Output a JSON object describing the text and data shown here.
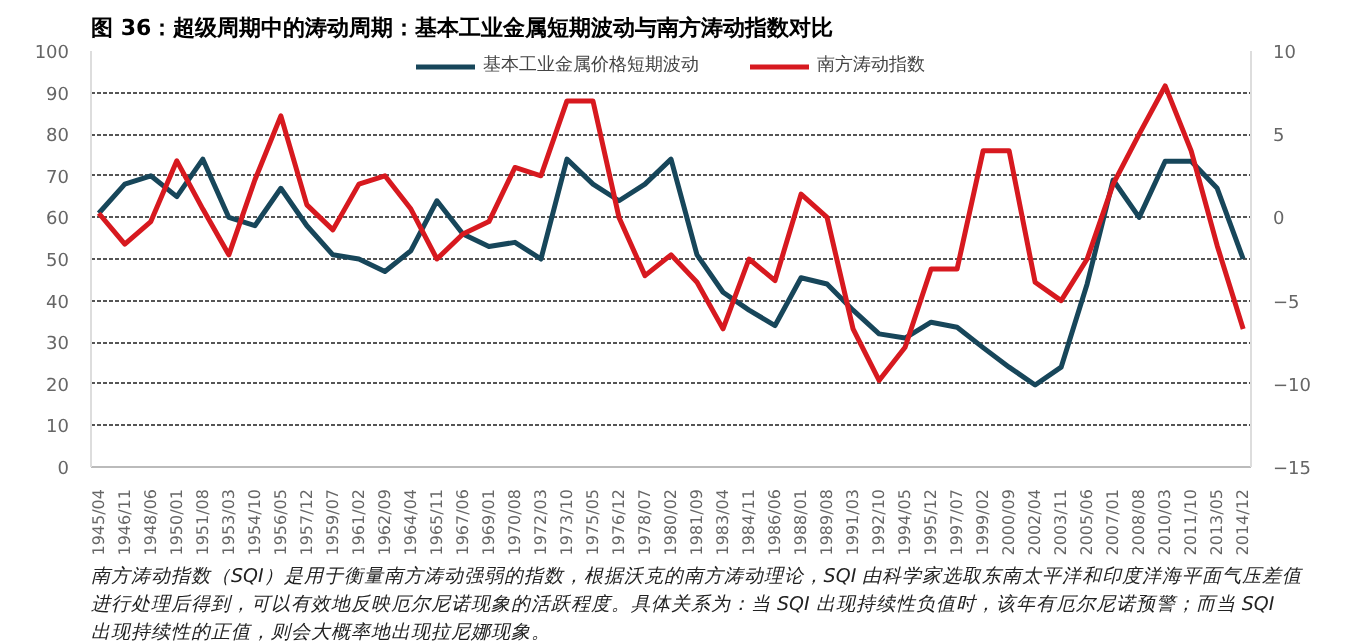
{
  "chart_data": {
    "type": "line",
    "title": "图 36：超级周期中的涛动周期：基本工业金属短期波动与南方涛动指数对比",
    "categories": [
      "1945/04",
      "1946/11",
      "1948/06",
      "1950/01",
      "1951/08",
      "1953/03",
      "1954/10",
      "1956/05",
      "1957/12",
      "1959/07",
      "1961/02",
      "1962/09",
      "1964/04",
      "1965/11",
      "1967/06",
      "1969/01",
      "1970/08",
      "1972/03",
      "1973/10",
      "1975/05",
      "1976/12",
      "1978/07",
      "1980/02",
      "1981/09",
      "1983/04",
      "1984/11",
      "1986/06",
      "1988/01",
      "1989/08",
      "1991/03",
      "1992/10",
      "1994/05",
      "1995/12",
      "1997/07",
      "1999/02",
      "2000/09",
      "2002/04",
      "2003/11",
      "2005/06",
      "2007/01",
      "2008/08",
      "2010/03",
      "2011/10",
      "2013/05",
      "2014/12"
    ],
    "series": [
      {
        "name": "基本工业金属价格短期波动",
        "color": "#17465a",
        "values": [
          61,
          68,
          70,
          65,
          74,
          60,
          58,
          67,
          58,
          51,
          50,
          47,
          52,
          64,
          56,
          53,
          54,
          50,
          74,
          68,
          64,
          68,
          74,
          51,
          42,
          37.7,
          34,
          45.5,
          44,
          37.7,
          32,
          31,
          34.8,
          33.6,
          28.7,
          24,
          19.7,
          24,
          44,
          69,
          60,
          73.5,
          73.5,
          67,
          50
        ]
      },
      {
        "name": "南方涛动指数",
        "color": "#d7191f",
        "axis": "y2",
        "values": [
          0.25,
          -1.6,
          -0.25,
          3.4,
          0.5,
          -2.25,
          2.25,
          6.1,
          0.75,
          -0.75,
          2,
          2.5,
          0.5,
          -2.5,
          -1,
          -0.25,
          3,
          2.5,
          7,
          7,
          0,
          -3.5,
          -2.25,
          -3.9,
          -6.7,
          -2.5,
          -3.8,
          1.4,
          0,
          -6.7,
          -9.8,
          -7.8,
          -3.1,
          -3.1,
          4,
          4,
          -3.9,
          -5,
          -2.5,
          2,
          5,
          7.9,
          4,
          -1.7,
          -6.7
        ]
      }
    ],
    "ylim": [
      0,
      100
    ],
    "yticks": [
      0,
      10,
      20,
      30,
      40,
      50,
      60,
      70,
      80,
      90,
      100
    ],
    "y2lim": [
      -15,
      10
    ],
    "y2ticks": [
      -15,
      -10,
      -5,
      0,
      5,
      10
    ],
    "grid": "y",
    "legend": "top",
    "marker": "none",
    "line_style": "solid",
    "annotations": [
      "南方涛动指数（SQI）是用于衡量南方涛动强弱的指数，根据沃克的南方涛动理论，SQI 由科学家选取东南太平洋和印度洋海平面气压差值进行处理后得到，可以有效地反映厄尔尼诺现象的活跃程度。具体关系为：当 SQI 出现持续性负值时，该年有厄尔尼诺预警；而当 SQI 出现持续性的正值，则会大概率地出现拉尼娜现象。"
    ]
  }
}
